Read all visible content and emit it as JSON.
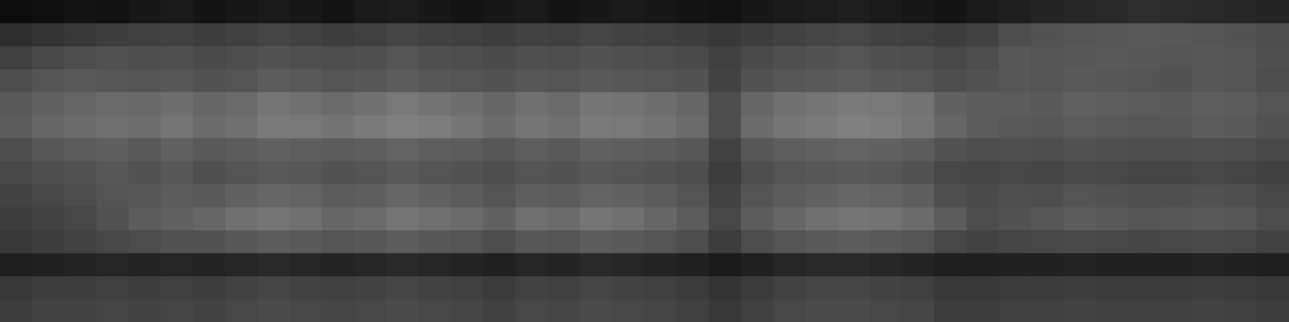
{
  "chart_data": {
    "type": "heatmap",
    "tick_labels": false,
    "grid": false,
    "cells": [
      [
        5,
        6,
        8,
        7,
        9,
        10,
        8,
        9,
        10,
        9,
        8,
        10,
        11,
        9,
        8,
        9,
        10,
        8,
        9,
        10,
        9,
        8,
        7,
        9,
        10,
        11,
        12,
        10,
        9,
        8,
        10,
        12,
        14,
        15,
        16,
        18,
        17,
        16,
        15,
        14
      ],
      [
        18,
        20,
        22,
        24,
        25,
        26,
        24,
        25,
        27,
        26,
        24,
        25,
        27,
        26,
        25,
        24,
        26,
        25,
        27,
        26,
        25,
        24,
        22,
        24,
        26,
        27,
        28,
        26,
        25,
        24,
        26,
        30,
        32,
        33,
        34,
        35,
        34,
        33,
        32,
        30
      ],
      [
        25,
        28,
        30,
        32,
        30,
        31,
        29,
        30,
        32,
        31,
        30,
        31,
        33,
        31,
        30,
        29,
        31,
        30,
        32,
        31,
        30,
        29,
        25,
        29,
        31,
        32,
        33,
        31,
        30,
        28,
        30,
        34,
        33,
        34,
        35,
        34,
        33,
        34,
        33,
        31
      ],
      [
        30,
        33,
        35,
        34,
        33,
        34,
        32,
        33,
        36,
        35,
        33,
        34,
        36,
        34,
        33,
        32,
        34,
        33,
        35,
        34,
        33,
        32,
        26,
        32,
        34,
        35,
        36,
        34,
        33,
        30,
        32,
        34,
        33,
        35,
        34,
        33,
        32,
        34,
        33,
        30
      ],
      [
        35,
        38,
        40,
        42,
        41,
        43,
        40,
        42,
        46,
        44,
        42,
        44,
        47,
        45,
        43,
        40,
        44,
        42,
        46,
        45,
        43,
        40,
        30,
        40,
        44,
        46,
        48,
        47,
        45,
        38,
        36,
        36,
        35,
        38,
        37,
        36,
        35,
        37,
        36,
        33
      ],
      [
        36,
        40,
        42,
        44,
        43,
        46,
        42,
        44,
        48,
        47,
        45,
        48,
        50,
        49,
        46,
        42,
        46,
        44,
        48,
        47,
        45,
        42,
        30,
        42,
        46,
        48,
        50,
        49,
        46,
        40,
        36,
        35,
        34,
        36,
        35,
        34,
        34,
        36,
        35,
        32
      ],
      [
        30,
        34,
        36,
        37,
        35,
        38,
        35,
        36,
        38,
        37,
        36,
        37,
        39,
        37,
        36,
        34,
        37,
        35,
        38,
        37,
        36,
        34,
        26,
        34,
        37,
        38,
        39,
        38,
        36,
        32,
        30,
        31,
        30,
        32,
        31,
        30,
        30,
        31,
        30,
        28
      ],
      [
        28,
        30,
        32,
        34,
        32,
        34,
        31,
        33,
        35,
        34,
        32,
        33,
        35,
        33,
        32,
        30,
        33,
        32,
        34,
        33,
        32,
        30,
        24,
        30,
        33,
        34,
        35,
        34,
        32,
        28,
        27,
        28,
        27,
        29,
        28,
        27,
        27,
        28,
        27,
        25
      ],
      [
        26,
        28,
        30,
        33,
        34,
        36,
        35,
        38,
        40,
        39,
        36,
        37,
        40,
        38,
        36,
        33,
        37,
        36,
        39,
        38,
        36,
        33,
        26,
        33,
        36,
        38,
        40,
        39,
        37,
        31,
        29,
        31,
        30,
        33,
        32,
        31,
        31,
        32,
        31,
        28
      ],
      [
        24,
        26,
        28,
        32,
        36,
        38,
        40,
        44,
        46,
        44,
        40,
        42,
        46,
        44,
        42,
        38,
        44,
        42,
        46,
        44,
        40,
        36,
        28,
        36,
        40,
        44,
        46,
        45,
        42,
        36,
        30,
        32,
        34,
        36,
        35,
        33,
        34,
        35,
        34,
        30
      ],
      [
        22,
        24,
        26,
        28,
        30,
        32,
        32,
        34,
        36,
        35,
        33,
        34,
        36,
        34,
        33,
        30,
        34,
        33,
        36,
        35,
        33,
        30,
        24,
        30,
        33,
        35,
        36,
        35,
        33,
        28,
        26,
        27,
        28,
        29,
        28,
        27,
        28,
        29,
        28,
        26
      ],
      [
        12,
        13,
        14,
        15,
        14,
        15,
        14,
        15,
        16,
        15,
        14,
        15,
        16,
        15,
        14,
        13,
        15,
        14,
        16,
        15,
        14,
        13,
        10,
        13,
        15,
        16,
        16,
        15,
        14,
        12,
        12,
        13,
        13,
        14,
        13,
        13,
        13,
        14,
        13,
        12
      ],
      [
        22,
        24,
        24,
        25,
        24,
        25,
        24,
        26,
        27,
        26,
        25,
        26,
        27,
        26,
        25,
        23,
        26,
        25,
        27,
        26,
        25,
        23,
        20,
        23,
        26,
        27,
        27,
        26,
        25,
        22,
        22,
        23,
        23,
        24,
        23,
        23,
        23,
        24,
        23,
        22
      ],
      [
        24,
        26,
        26,
        27,
        26,
        27,
        26,
        28,
        29,
        28,
        27,
        28,
        29,
        28,
        27,
        25,
        28,
        27,
        29,
        28,
        27,
        25,
        22,
        25,
        28,
        29,
        29,
        28,
        27,
        24,
        24,
        25,
        25,
        26,
        25,
        25,
        25,
        26,
        25,
        24
      ]
    ]
  }
}
